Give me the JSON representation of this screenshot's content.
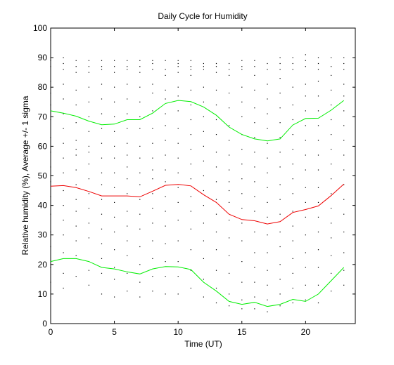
{
  "chart_data": {
    "type": "line",
    "title": "Daily Cycle for Humidity",
    "xlabel": "Time (UT)",
    "ylabel": "Relative humidity (%), Average +/- 1 sigma",
    "xlim": [
      0,
      23.9
    ],
    "ylim": [
      0,
      100
    ],
    "xticks": [
      0,
      5,
      10,
      15,
      20
    ],
    "yticks": [
      0,
      10,
      20,
      30,
      40,
      50,
      60,
      70,
      80,
      90,
      100
    ],
    "grid": false,
    "x": [
      0,
      1,
      2,
      3,
      4,
      5,
      6,
      7,
      8,
      9,
      10,
      11,
      12,
      13,
      14,
      15,
      16,
      17,
      18,
      19,
      20,
      21,
      22,
      23
    ],
    "series": [
      {
        "color": "#00ee00",
        "values": [
          72,
          71.2,
          70.2,
          68.5,
          67.3,
          67.5,
          69,
          69,
          71.2,
          74.5,
          75.5,
          75.1,
          73.3,
          70.5,
          66.5,
          64,
          62.5,
          61.8,
          62.5,
          67.2,
          69.4,
          69.5,
          72.2,
          75.5
        ]
      },
      {
        "color": "#ee0000",
        "values": [
          46.5,
          46.7,
          46,
          44.7,
          43.2,
          43.2,
          43.2,
          42.9,
          44.8,
          46.8,
          47.1,
          46.6,
          43.6,
          41,
          37,
          35.2,
          34.8,
          33.7,
          34.5,
          37.6,
          38.6,
          39.8,
          43.3,
          47.2
        ]
      },
      {
        "color": "#00ee00",
        "values": [
          21,
          22,
          22,
          21,
          19,
          18.5,
          17.5,
          16.8,
          18.5,
          19.3,
          19.2,
          18.3,
          14,
          11,
          7.5,
          6.5,
          7.2,
          5.8,
          6.5,
          8.2,
          7.5,
          10,
          14.5,
          19
        ]
      }
    ],
    "scatter_color": "#000000",
    "scatter": [
      [
        0,
        89
      ],
      [
        0,
        87
      ],
      [
        0,
        82
      ],
      [
        0,
        78
      ],
      [
        0,
        74
      ],
      [
        0,
        69
      ],
      [
        0,
        63
      ],
      [
        0,
        58
      ],
      [
        0,
        53
      ],
      [
        0,
        48
      ],
      [
        0,
        43
      ],
      [
        0,
        37
      ],
      [
        0,
        31
      ],
      [
        0,
        26
      ],
      [
        0,
        19
      ],
      [
        0,
        14
      ],
      [
        1,
        90
      ],
      [
        1,
        88
      ],
      [
        1,
        86
      ],
      [
        1,
        81
      ],
      [
        1,
        76
      ],
      [
        1,
        71
      ],
      [
        1,
        66
      ],
      [
        1,
        61
      ],
      [
        1,
        56
      ],
      [
        1,
        51
      ],
      [
        1,
        45
      ],
      [
        1,
        40
      ],
      [
        1,
        35
      ],
      [
        1,
        30
      ],
      [
        1,
        24
      ],
      [
        1,
        17
      ],
      [
        1,
        12
      ],
      [
        2,
        89
      ],
      [
        2,
        87
      ],
      [
        2,
        85
      ],
      [
        2,
        79
      ],
      [
        2,
        74
      ],
      [
        2,
        68
      ],
      [
        2,
        62
      ],
      [
        2,
        59
      ],
      [
        2,
        57
      ],
      [
        2,
        52
      ],
      [
        2,
        47
      ],
      [
        2,
        42
      ],
      [
        2,
        38
      ],
      [
        2,
        33
      ],
      [
        2,
        28
      ],
      [
        2,
        23
      ],
      [
        2,
        16
      ],
      [
        3,
        89
      ],
      [
        3,
        87
      ],
      [
        3,
        85
      ],
      [
        3,
        80
      ],
      [
        3,
        75
      ],
      [
        3,
        70
      ],
      [
        3,
        65
      ],
      [
        3,
        60
      ],
      [
        3,
        58
      ],
      [
        3,
        54
      ],
      [
        3,
        49
      ],
      [
        3,
        44
      ],
      [
        3,
        39
      ],
      [
        3,
        34
      ],
      [
        3,
        29
      ],
      [
        3,
        18
      ],
      [
        3,
        13
      ],
      [
        4,
        89
      ],
      [
        4,
        87
      ],
      [
        4,
        86
      ],
      [
        4,
        81
      ],
      [
        4,
        76
      ],
      [
        4,
        71
      ],
      [
        4,
        66
      ],
      [
        4,
        61
      ],
      [
        4,
        56
      ],
      [
        4,
        51
      ],
      [
        4,
        47
      ],
      [
        4,
        42
      ],
      [
        4,
        37
      ],
      [
        4,
        32
      ],
      [
        4,
        27
      ],
      [
        4,
        22
      ],
      [
        4,
        17
      ],
      [
        4,
        10
      ],
      [
        5,
        89
      ],
      [
        5,
        87
      ],
      [
        5,
        85
      ],
      [
        5,
        80
      ],
      [
        5,
        75
      ],
      [
        5,
        70
      ],
      [
        5,
        65
      ],
      [
        5,
        60
      ],
      [
        5,
        56
      ],
      [
        5,
        51
      ],
      [
        5,
        46
      ],
      [
        5,
        41
      ],
      [
        5,
        36
      ],
      [
        5,
        31
      ],
      [
        5,
        25
      ],
      [
        5,
        19
      ],
      [
        5,
        15
      ],
      [
        5,
        9
      ],
      [
        6,
        89
      ],
      [
        6,
        87
      ],
      [
        6,
        86
      ],
      [
        6,
        81
      ],
      [
        6,
        76
      ],
      [
        6,
        71
      ],
      [
        6,
        66
      ],
      [
        6,
        61
      ],
      [
        6,
        57
      ],
      [
        6,
        53
      ],
      [
        6,
        49
      ],
      [
        6,
        44
      ],
      [
        6,
        38
      ],
      [
        6,
        33
      ],
      [
        6,
        28
      ],
      [
        6,
        23
      ],
      [
        6,
        17
      ],
      [
        6,
        11
      ],
      [
        7,
        89
      ],
      [
        7,
        87
      ],
      [
        7,
        85
      ],
      [
        7,
        80
      ],
      [
        7,
        75
      ],
      [
        7,
        70
      ],
      [
        7,
        66
      ],
      [
        7,
        60
      ],
      [
        7,
        56
      ],
      [
        7,
        51
      ],
      [
        7,
        47
      ],
      [
        7,
        42
      ],
      [
        7,
        37
      ],
      [
        7,
        32
      ],
      [
        7,
        26
      ],
      [
        7,
        20
      ],
      [
        7,
        14
      ],
      [
        7,
        9
      ],
      [
        8,
        89
      ],
      [
        8,
        88
      ],
      [
        8,
        86
      ],
      [
        8,
        81
      ],
      [
        8,
        78
      ],
      [
        8,
        72
      ],
      [
        8,
        66
      ],
      [
        8,
        61
      ],
      [
        8,
        56
      ],
      [
        8,
        52
      ],
      [
        8,
        49
      ],
      [
        8,
        44
      ],
      [
        8,
        39
      ],
      [
        8,
        34
      ],
      [
        8,
        28
      ],
      [
        8,
        22
      ],
      [
        8,
        16
      ],
      [
        8,
        11
      ],
      [
        9,
        89
      ],
      [
        9,
        86
      ],
      [
        9,
        84
      ],
      [
        9,
        79
      ],
      [
        9,
        76
      ],
      [
        9,
        71
      ],
      [
        9,
        67
      ],
      [
        9,
        62
      ],
      [
        9,
        57
      ],
      [
        9,
        52
      ],
      [
        9,
        48
      ],
      [
        9,
        43
      ],
      [
        9,
        38
      ],
      [
        9,
        33
      ],
      [
        9,
        27
      ],
      [
        9,
        21
      ],
      [
        9,
        16
      ],
      [
        9,
        10
      ],
      [
        10,
        89
      ],
      [
        10,
        88
      ],
      [
        10,
        87
      ],
      [
        10,
        85
      ],
      [
        10,
        80
      ],
      [
        10,
        77
      ],
      [
        10,
        72
      ],
      [
        10,
        66
      ],
      [
        10,
        61
      ],
      [
        10,
        56
      ],
      [
        10,
        51
      ],
      [
        10,
        46
      ],
      [
        10,
        41
      ],
      [
        10,
        35
      ],
      [
        10,
        28
      ],
      [
        10,
        21
      ],
      [
        10,
        16
      ],
      [
        10,
        10
      ],
      [
        11,
        89
      ],
      [
        11,
        87
      ],
      [
        11,
        86
      ],
      [
        11,
        84
      ],
      [
        11,
        79
      ],
      [
        11,
        74
      ],
      [
        11,
        69
      ],
      [
        11,
        64
      ],
      [
        11,
        59
      ],
      [
        11,
        54
      ],
      [
        11,
        49
      ],
      [
        11,
        43
      ],
      [
        11,
        38
      ],
      [
        11,
        32
      ],
      [
        11,
        25
      ],
      [
        11,
        18
      ],
      [
        11,
        12
      ],
      [
        12,
        88
      ],
      [
        12,
        87
      ],
      [
        12,
        86
      ],
      [
        12,
        80
      ],
      [
        12,
        75
      ],
      [
        12,
        70
      ],
      [
        12,
        65
      ],
      [
        12,
        60
      ],
      [
        12,
        55
      ],
      [
        12,
        50
      ],
      [
        12,
        45
      ],
      [
        12,
        40
      ],
      [
        12,
        34
      ],
      [
        12,
        28
      ],
      [
        12,
        22
      ],
      [
        12,
        15
      ],
      [
        12,
        9
      ],
      [
        13,
        88
      ],
      [
        13,
        87
      ],
      [
        13,
        85
      ],
      [
        13,
        79
      ],
      [
        13,
        74
      ],
      [
        13,
        69
      ],
      [
        13,
        64
      ],
      [
        13,
        58
      ],
      [
        13,
        53
      ],
      [
        13,
        48
      ],
      [
        13,
        42
      ],
      [
        13,
        37
      ],
      [
        13,
        31
      ],
      [
        13,
        25
      ],
      [
        13,
        18
      ],
      [
        13,
        12
      ],
      [
        13,
        7
      ],
      [
        14,
        88
      ],
      [
        14,
        86
      ],
      [
        14,
        84
      ],
      [
        14,
        78
      ],
      [
        14,
        73
      ],
      [
        14,
        67
      ],
      [
        14,
        62
      ],
      [
        14,
        57
      ],
      [
        14,
        52
      ],
      [
        14,
        48
      ],
      [
        14,
        45
      ],
      [
        14,
        41
      ],
      [
        14,
        35
      ],
      [
        14,
        29
      ],
      [
        14,
        23
      ],
      [
        14,
        17
      ],
      [
        14,
        10
      ],
      [
        14,
        6
      ],
      [
        15,
        89
      ],
      [
        15,
        87
      ],
      [
        15,
        86
      ],
      [
        15,
        80
      ],
      [
        15,
        75
      ],
      [
        15,
        70
      ],
      [
        15,
        64
      ],
      [
        15,
        59
      ],
      [
        15,
        54
      ],
      [
        15,
        49
      ],
      [
        15,
        44
      ],
      [
        15,
        39
      ],
      [
        15,
        34
      ],
      [
        15,
        28
      ],
      [
        15,
        21
      ],
      [
        15,
        14
      ],
      [
        15,
        8
      ],
      [
        15,
        5
      ],
      [
        16,
        89
      ],
      [
        16,
        87
      ],
      [
        16,
        84
      ],
      [
        16,
        79
      ],
      [
        16,
        73
      ],
      [
        16,
        68
      ],
      [
        16,
        63
      ],
      [
        16,
        58
      ],
      [
        16,
        53
      ],
      [
        16,
        48
      ],
      [
        16,
        43
      ],
      [
        16,
        38
      ],
      [
        16,
        31
      ],
      [
        16,
        24
      ],
      [
        16,
        19
      ],
      [
        16,
        14
      ],
      [
        16,
        9
      ],
      [
        16,
        5
      ],
      [
        17,
        88
      ],
      [
        17,
        86
      ],
      [
        17,
        81
      ],
      [
        17,
        76
      ],
      [
        17,
        71
      ],
      [
        17,
        66
      ],
      [
        17,
        61
      ],
      [
        17,
        56
      ],
      [
        17,
        51
      ],
      [
        17,
        46
      ],
      [
        17,
        41
      ],
      [
        17,
        36
      ],
      [
        17,
        30
      ],
      [
        17,
        24
      ],
      [
        17,
        18
      ],
      [
        17,
        13
      ],
      [
        17,
        8
      ],
      [
        17,
        4
      ],
      [
        18,
        90
      ],
      [
        18,
        88
      ],
      [
        18,
        86
      ],
      [
        18,
        83
      ],
      [
        18,
        78
      ],
      [
        18,
        73
      ],
      [
        18,
        68
      ],
      [
        18,
        63
      ],
      [
        18,
        58
      ],
      [
        18,
        53
      ],
      [
        18,
        47
      ],
      [
        18,
        42
      ],
      [
        18,
        37
      ],
      [
        18,
        31
      ],
      [
        18,
        26
      ],
      [
        18,
        20
      ],
      [
        18,
        15
      ],
      [
        18,
        10
      ],
      [
        18,
        6
      ],
      [
        19,
        90
      ],
      [
        19,
        88
      ],
      [
        19,
        86
      ],
      [
        19,
        80
      ],
      [
        19,
        74
      ],
      [
        19,
        69
      ],
      [
        19,
        64
      ],
      [
        19,
        59
      ],
      [
        19,
        54
      ],
      [
        19,
        49
      ],
      [
        19,
        44
      ],
      [
        19,
        38
      ],
      [
        19,
        33
      ],
      [
        19,
        28
      ],
      [
        19,
        22
      ],
      [
        19,
        17
      ],
      [
        19,
        12
      ],
      [
        19,
        7
      ],
      [
        20,
        91
      ],
      [
        20,
        89
      ],
      [
        20,
        87
      ],
      [
        20,
        81
      ],
      [
        20,
        77
      ],
      [
        20,
        72
      ],
      [
        20,
        67
      ],
      [
        20,
        62
      ],
      [
        20,
        57
      ],
      [
        20,
        52
      ],
      [
        20,
        46
      ],
      [
        20,
        41
      ],
      [
        20,
        36
      ],
      [
        20,
        30
      ],
      [
        20,
        24
      ],
      [
        20,
        19
      ],
      [
        20,
        13
      ],
      [
        20,
        8
      ],
      [
        21,
        90
      ],
      [
        21,
        88
      ],
      [
        21,
        86
      ],
      [
        21,
        82
      ],
      [
        21,
        77
      ],
      [
        21,
        72
      ],
      [
        21,
        67
      ],
      [
        21,
        62
      ],
      [
        21,
        57
      ],
      [
        21,
        52
      ],
      [
        21,
        46
      ],
      [
        21,
        41
      ],
      [
        21,
        36
      ],
      [
        21,
        31
      ],
      [
        21,
        25
      ],
      [
        21,
        19
      ],
      [
        21,
        13
      ],
      [
        21,
        7
      ],
      [
        22,
        90
      ],
      [
        22,
        87
      ],
      [
        22,
        84
      ],
      [
        22,
        79
      ],
      [
        22,
        74
      ],
      [
        22,
        69
      ],
      [
        22,
        64
      ],
      [
        22,
        59
      ],
      [
        22,
        54
      ],
      [
        22,
        49
      ],
      [
        22,
        44
      ],
      [
        22,
        39
      ],
      [
        22,
        34
      ],
      [
        22,
        29
      ],
      [
        22,
        23
      ],
      [
        22,
        17
      ],
      [
        22,
        11
      ],
      [
        23,
        90
      ],
      [
        23,
        88
      ],
      [
        23,
        86
      ],
      [
        23,
        81
      ],
      [
        23,
        77
      ],
      [
        23,
        72
      ],
      [
        23,
        67
      ],
      [
        23,
        62
      ],
      [
        23,
        57
      ],
      [
        23,
        52
      ],
      [
        23,
        47
      ],
      [
        23,
        42
      ],
      [
        23,
        37
      ],
      [
        23,
        31
      ],
      [
        23,
        24
      ],
      [
        23,
        18
      ],
      [
        23,
        13
      ]
    ]
  }
}
